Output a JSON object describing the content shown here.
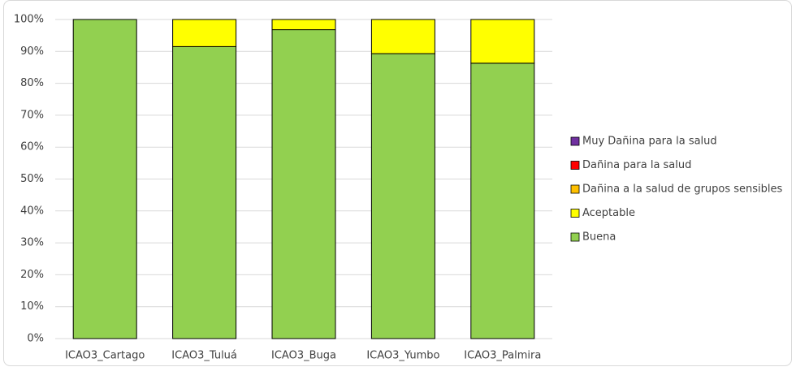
{
  "chart_data": {
    "type": "stacked-bar",
    "categories": [
      "ICAO3_Cartago",
      "ICAO3_Tuluá",
      "ICAO3_Buga",
      "ICAO3_Yumbo",
      "ICAO3_Palmira"
    ],
    "series": [
      {
        "name": "Buena",
        "color": "#92d050",
        "values": [
          100,
          91.5,
          96.8,
          89.3,
          86.3
        ]
      },
      {
        "name": "Aceptable",
        "color": "#ffff00",
        "values": [
          0,
          8.5,
          3.2,
          10.7,
          13.7
        ]
      },
      {
        "name": "Dañina a la salud de grupos sensibles",
        "color": "#ffc000",
        "values": [
          0,
          0,
          0,
          0,
          0
        ]
      },
      {
        "name": "Dañina para la salud",
        "color": "#ff0000",
        "values": [
          0,
          0,
          0,
          0,
          0
        ]
      },
      {
        "name": "Muy Dañina para la salud",
        "color": "#7030a0",
        "values": [
          0,
          0,
          0,
          0,
          0
        ]
      }
    ],
    "ylim": [
      0,
      100
    ],
    "yticks": [
      {
        "value": 0,
        "label": "0%"
      },
      {
        "value": 10,
        "label": "10%"
      },
      {
        "value": 20,
        "label": "20%"
      },
      {
        "value": 30,
        "label": "30%"
      },
      {
        "value": 40,
        "label": "40%"
      },
      {
        "value": 50,
        "label": "50%"
      },
      {
        "value": 60,
        "label": "60%"
      },
      {
        "value": 70,
        "label": "70%"
      },
      {
        "value": 80,
        "label": "80%"
      },
      {
        "value": 90,
        "label": "90%"
      },
      {
        "value": 100,
        "label": "100%"
      }
    ],
    "grid": true,
    "legend": "right"
  }
}
